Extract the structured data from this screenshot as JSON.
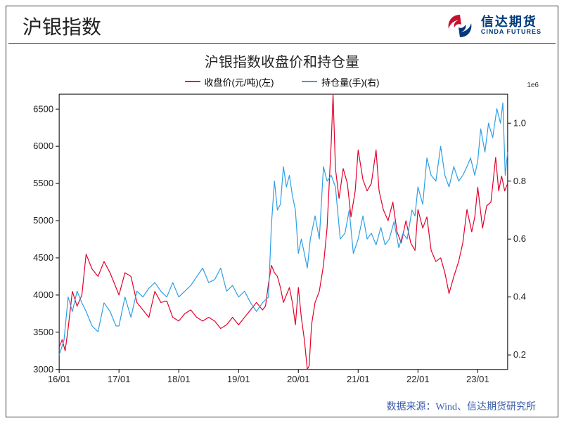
{
  "header": {
    "title": "沪银指数",
    "logo_cn": "信达期货",
    "logo_en": "CINDA FUTURES",
    "logo_colors": {
      "red": "#c8102e",
      "blue": "#003a7a"
    }
  },
  "chart": {
    "type": "line",
    "title": "沪银指数收盘价和持仓量",
    "title_fontsize": 20,
    "background_color": "#ffffff",
    "axis_color": "#000000",
    "text_color": "#222222",
    "right_axis_exponent_label": "1e6",
    "x": {
      "ticks": [
        "16/01",
        "17/01",
        "18/01",
        "19/01",
        "20/01",
        "21/01",
        "22/01",
        "23/01"
      ],
      "label_fontsize": 13
    },
    "y_left": {
      "lim": [
        3000,
        6700
      ],
      "ticks": [
        3000,
        3500,
        4000,
        4500,
        5000,
        5500,
        6000,
        6500
      ],
      "label_fontsize": 13
    },
    "y_right": {
      "lim": [
        0.15,
        1.1
      ],
      "ticks": [
        0.2,
        0.4,
        0.6,
        0.8,
        1.0
      ],
      "label_fontsize": 13,
      "unit_multiplier": 1000000
    },
    "series": [
      {
        "id": "close",
        "legend": "收盘价(元/吨)(左)",
        "color": "#e4002b",
        "line_width": 1.2,
        "y_axis": "left",
        "data": [
          [
            0.0,
            3300
          ],
          [
            0.05,
            3400
          ],
          [
            0.1,
            3250
          ],
          [
            0.15,
            3550
          ],
          [
            0.22,
            4050
          ],
          [
            0.3,
            3850
          ],
          [
            0.38,
            4000
          ],
          [
            0.45,
            4550
          ],
          [
            0.55,
            4350
          ],
          [
            0.65,
            4250
          ],
          [
            0.75,
            4450
          ],
          [
            0.85,
            4300
          ],
          [
            0.95,
            4100
          ],
          [
            1.0,
            4000
          ],
          [
            1.1,
            4300
          ],
          [
            1.2,
            4250
          ],
          [
            1.3,
            3900
          ],
          [
            1.4,
            3800
          ],
          [
            1.5,
            3700
          ],
          [
            1.6,
            4050
          ],
          [
            1.7,
            3900
          ],
          [
            1.8,
            3920
          ],
          [
            1.9,
            3700
          ],
          [
            2.0,
            3650
          ],
          [
            2.1,
            3750
          ],
          [
            2.2,
            3800
          ],
          [
            2.3,
            3700
          ],
          [
            2.4,
            3650
          ],
          [
            2.5,
            3700
          ],
          [
            2.6,
            3650
          ],
          [
            2.7,
            3550
          ],
          [
            2.8,
            3600
          ],
          [
            2.9,
            3700
          ],
          [
            3.0,
            3600
          ],
          [
            3.1,
            3700
          ],
          [
            3.2,
            3800
          ],
          [
            3.3,
            3900
          ],
          [
            3.4,
            3800
          ],
          [
            3.45,
            3850
          ],
          [
            3.5,
            4150
          ],
          [
            3.55,
            4400
          ],
          [
            3.6,
            4300
          ],
          [
            3.65,
            4250
          ],
          [
            3.7,
            4100
          ],
          [
            3.75,
            3900
          ],
          [
            3.8,
            4000
          ],
          [
            3.85,
            4100
          ],
          [
            3.9,
            3900
          ],
          [
            3.95,
            3600
          ],
          [
            4.0,
            4100
          ],
          [
            4.05,
            3700
          ],
          [
            4.1,
            3400
          ],
          [
            4.15,
            3000
          ],
          [
            4.18,
            3050
          ],
          [
            4.22,
            3600
          ],
          [
            4.28,
            3900
          ],
          [
            4.35,
            4050
          ],
          [
            4.42,
            4400
          ],
          [
            4.48,
            4900
          ],
          [
            4.55,
            6050
          ],
          [
            4.58,
            6700
          ],
          [
            4.62,
            5700
          ],
          [
            4.68,
            5300
          ],
          [
            4.75,
            5700
          ],
          [
            4.82,
            5500
          ],
          [
            4.88,
            5050
          ],
          [
            4.95,
            5400
          ],
          [
            5.0,
            5950
          ],
          [
            5.08,
            5550
          ],
          [
            5.15,
            5400
          ],
          [
            5.22,
            5500
          ],
          [
            5.3,
            5950
          ],
          [
            5.35,
            5400
          ],
          [
            5.42,
            5150
          ],
          [
            5.5,
            5000
          ],
          [
            5.58,
            5250
          ],
          [
            5.65,
            4850
          ],
          [
            5.72,
            4700
          ],
          [
            5.8,
            5000
          ],
          [
            5.88,
            4700
          ],
          [
            5.95,
            4600
          ],
          [
            6.0,
            5150
          ],
          [
            6.08,
            4900
          ],
          [
            6.15,
            5050
          ],
          [
            6.22,
            4600
          ],
          [
            6.3,
            4450
          ],
          [
            6.38,
            4500
          ],
          [
            6.45,
            4300
          ],
          [
            6.52,
            4020
          ],
          [
            6.6,
            4250
          ],
          [
            6.68,
            4450
          ],
          [
            6.75,
            4700
          ],
          [
            6.82,
            5150
          ],
          [
            6.9,
            4850
          ],
          [
            6.95,
            5050
          ],
          [
            7.0,
            5450
          ],
          [
            7.08,
            4900
          ],
          [
            7.15,
            5200
          ],
          [
            7.22,
            5250
          ],
          [
            7.3,
            5850
          ],
          [
            7.35,
            5400
          ],
          [
            7.4,
            5600
          ],
          [
            7.45,
            5400
          ],
          [
            7.5,
            5500
          ]
        ]
      },
      {
        "id": "oi",
        "legend": "持仓量(手)(右)",
        "color": "#2e9fe6",
        "line_width": 1.2,
        "y_axis": "right",
        "data": [
          [
            0.0,
            0.2
          ],
          [
            0.08,
            0.25
          ],
          [
            0.15,
            0.4
          ],
          [
            0.22,
            0.35
          ],
          [
            0.3,
            0.42
          ],
          [
            0.38,
            0.38
          ],
          [
            0.45,
            0.35
          ],
          [
            0.55,
            0.3
          ],
          [
            0.65,
            0.28
          ],
          [
            0.75,
            0.38
          ],
          [
            0.85,
            0.35
          ],
          [
            0.95,
            0.3
          ],
          [
            1.0,
            0.3
          ],
          [
            1.1,
            0.4
          ],
          [
            1.2,
            0.33
          ],
          [
            1.3,
            0.42
          ],
          [
            1.4,
            0.4
          ],
          [
            1.5,
            0.43
          ],
          [
            1.6,
            0.45
          ],
          [
            1.7,
            0.42
          ],
          [
            1.8,
            0.4
          ],
          [
            1.9,
            0.45
          ],
          [
            2.0,
            0.4
          ],
          [
            2.1,
            0.42
          ],
          [
            2.2,
            0.44
          ],
          [
            2.3,
            0.47
          ],
          [
            2.4,
            0.5
          ],
          [
            2.5,
            0.45
          ],
          [
            2.6,
            0.46
          ],
          [
            2.7,
            0.5
          ],
          [
            2.8,
            0.42
          ],
          [
            2.9,
            0.44
          ],
          [
            3.0,
            0.4
          ],
          [
            3.1,
            0.42
          ],
          [
            3.2,
            0.38
          ],
          [
            3.3,
            0.35
          ],
          [
            3.4,
            0.38
          ],
          [
            3.5,
            0.4
          ],
          [
            3.55,
            0.65
          ],
          [
            3.6,
            0.8
          ],
          [
            3.65,
            0.7
          ],
          [
            3.7,
            0.72
          ],
          [
            3.75,
            0.85
          ],
          [
            3.8,
            0.78
          ],
          [
            3.85,
            0.82
          ],
          [
            3.9,
            0.75
          ],
          [
            3.95,
            0.7
          ],
          [
            4.0,
            0.55
          ],
          [
            4.05,
            0.6
          ],
          [
            4.1,
            0.55
          ],
          [
            4.15,
            0.5
          ],
          [
            4.2,
            0.6
          ],
          [
            4.28,
            0.68
          ],
          [
            4.35,
            0.6
          ],
          [
            4.42,
            0.85
          ],
          [
            4.48,
            0.8
          ],
          [
            4.55,
            0.82
          ],
          [
            4.62,
            0.78
          ],
          [
            4.7,
            0.6
          ],
          [
            4.78,
            0.62
          ],
          [
            4.85,
            0.7
          ],
          [
            4.92,
            0.55
          ],
          [
            5.0,
            0.6
          ],
          [
            5.08,
            0.68
          ],
          [
            5.15,
            0.6
          ],
          [
            5.22,
            0.62
          ],
          [
            5.3,
            0.58
          ],
          [
            5.38,
            0.64
          ],
          [
            5.45,
            0.58
          ],
          [
            5.52,
            0.6
          ],
          [
            5.6,
            0.66
          ],
          [
            5.68,
            0.57
          ],
          [
            5.75,
            0.62
          ],
          [
            5.82,
            0.6
          ],
          [
            5.9,
            0.7
          ],
          [
            5.95,
            0.68
          ],
          [
            6.0,
            0.78
          ],
          [
            6.08,
            0.72
          ],
          [
            6.15,
            0.88
          ],
          [
            6.22,
            0.82
          ],
          [
            6.3,
            0.8
          ],
          [
            6.38,
            0.92
          ],
          [
            6.45,
            0.82
          ],
          [
            6.52,
            0.78
          ],
          [
            6.6,
            0.85
          ],
          [
            6.68,
            0.8
          ],
          [
            6.75,
            0.82
          ],
          [
            6.82,
            0.85
          ],
          [
            6.88,
            0.88
          ],
          [
            6.95,
            0.82
          ],
          [
            7.0,
            0.87
          ],
          [
            7.05,
            0.98
          ],
          [
            7.12,
            0.9
          ],
          [
            7.18,
            1.0
          ],
          [
            7.25,
            0.95
          ],
          [
            7.32,
            1.05
          ],
          [
            7.38,
            1.0
          ],
          [
            7.42,
            1.07
          ],
          [
            7.46,
            0.82
          ],
          [
            7.5,
            0.9
          ]
        ]
      }
    ]
  },
  "source": {
    "label": "数据来源：Wind、信达期货研究所",
    "color": "#3a5da8",
    "fontsize": 14
  }
}
